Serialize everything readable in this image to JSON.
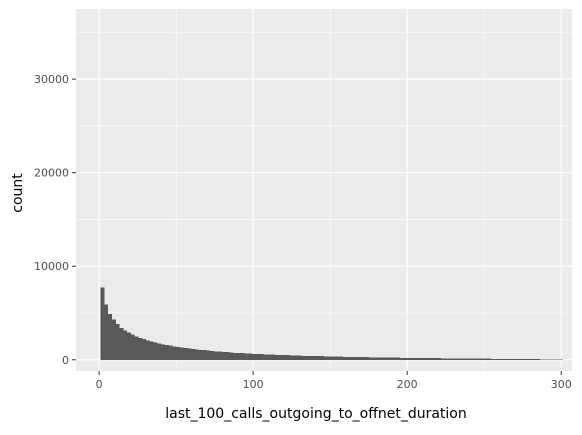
{
  "chart_data": {
    "type": "bar",
    "subtype": "histogram",
    "xlabel": "last_100_calls_outgoing_to_offnet_duration",
    "ylabel": "count",
    "xlim": [
      -15,
      307
    ],
    "ylim": [
      -1200,
      37500
    ],
    "x_ticks": [
      0,
      100,
      200,
      300
    ],
    "x_tick_labels": [
      "0",
      "100",
      "200",
      "300"
    ],
    "y_ticks": [
      0,
      10000,
      20000,
      30000
    ],
    "y_tick_labels": [
      "0",
      "10000",
      "20000",
      "30000"
    ],
    "grid": true,
    "bin_start": 1,
    "bin_width": 2.46,
    "counts": [
      7700,
      5900,
      4900,
      4300,
      3800,
      3400,
      3150,
      2900,
      2700,
      2500,
      2350,
      2200,
      2050,
      1950,
      1850,
      1750,
      1650,
      1580,
      1500,
      1430,
      1370,
      1310,
      1250,
      1200,
      1150,
      1100,
      1060,
      1020,
      980,
      940,
      900,
      870,
      840,
      810,
      780,
      750,
      720,
      700,
      680,
      660,
      640,
      620,
      600,
      580,
      560,
      545,
      530,
      515,
      500,
      485,
      470,
      455,
      440,
      430,
      420,
      410,
      400,
      390,
      380,
      370,
      360,
      350,
      340,
      330,
      322,
      314,
      306,
      298,
      290,
      282,
      275,
      268,
      261,
      254,
      247,
      240,
      234,
      228,
      222,
      216,
      210,
      205,
      200,
      195,
      190,
      185,
      180,
      175,
      170,
      165,
      160,
      156,
      152,
      148,
      144,
      140,
      136,
      132,
      128,
      124,
      120,
      116,
      112,
      108,
      104,
      100,
      96,
      92,
      88,
      84,
      80,
      76,
      72,
      68,
      64,
      60,
      55,
      50,
      45,
      40,
      35,
      30
    ],
    "bar_color": "#595959",
    "panel_background": "#ebebeb",
    "grid_color": "#ffffff"
  }
}
